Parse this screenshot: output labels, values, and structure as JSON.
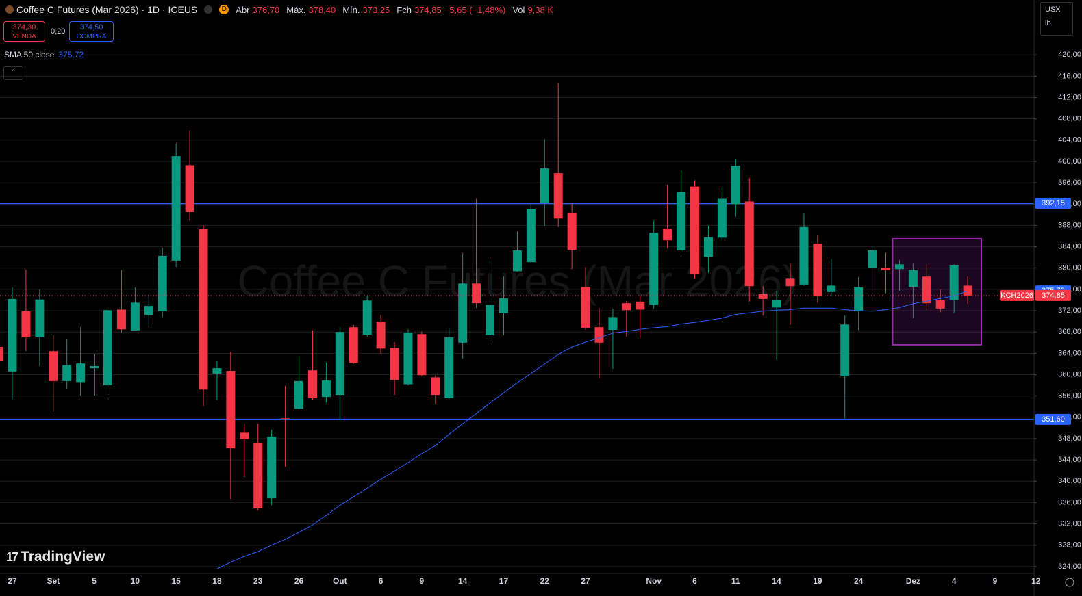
{
  "header": {
    "title": "Coffee C Futures (Mar 2026) · 1D · ICEUS",
    "interval_badge": "D",
    "open_label": "Abr",
    "open": "376,70",
    "high_label": "Máx.",
    "high": "378,40",
    "low_label": "Mín.",
    "low": "373,25",
    "close_label": "Fch",
    "close": "374,85",
    "change": "−5,65 (−1,48%)",
    "volume_label": "Vol",
    "volume": "9,38 K",
    "sell_price": "374,30",
    "sell_label": "VENDA",
    "spread": "0,20",
    "buy_price": "374,50",
    "buy_label": "COMPRA",
    "currency": "USX",
    "unit": "lb",
    "logo": "TradingView"
  },
  "chart_data": {
    "type": "candlestick",
    "watermark": "Coffee C Futures (Mar 2026)",
    "categories": [
      null,
      "27",
      null,
      null,
      "Set",
      null,
      null,
      "5",
      null,
      null,
      "10",
      null,
      null,
      "15",
      null,
      null,
      "18",
      null,
      null,
      "23",
      null,
      null,
      "26",
      null,
      null,
      "Out",
      null,
      null,
      "6",
      null,
      null,
      "9",
      null,
      null,
      "14",
      null,
      null,
      "17",
      null,
      null,
      "22",
      null,
      null,
      "27",
      null,
      null,
      null,
      null,
      "Nov",
      null,
      null,
      "6",
      null,
      null,
      "11",
      null,
      null,
      "14",
      null,
      null,
      "19",
      null,
      null,
      "24",
      null,
      null,
      null,
      "Dez",
      null,
      null,
      "4",
      null,
      null,
      "9",
      null,
      null,
      "12"
    ],
    "open": [
      365.2,
      360.6,
      371.9,
      367.0,
      364.4,
      358.8,
      358.6,
      361.2,
      358.0,
      372.2,
      368.3,
      371.2,
      371.9,
      381.4,
      399.3,
      387.3,
      360.2,
      360.7,
      349.1,
      347.2,
      336.8,
      351.8,
      353.6,
      360.8,
      355.8,
      356.2,
      368.9,
      367.5,
      369.9,
      365.0,
      358.2,
      367.6,
      359.5,
      355.6,
      366.0,
      377.1,
      367.4,
      371.5,
      379.4,
      381.1,
      392.3,
      397.8,
      390.3,
      376.5,
      368.9,
      368.4,
      373.4,
      373.7,
      373.1,
      387.4,
      383.3,
      395.3,
      382.1,
      385.7,
      392.0,
      392.5,
      375.1,
      372.6,
      378.0,
      376.9,
      384.6,
      375.5,
      359.7,
      371.9,
      380.0,
      380.0,
      379.8,
      376.5,
      378.4,
      374.0,
      374.0,
      376.7,
      null,
      null,
      null,
      null,
      null
    ],
    "high": [
      366.1,
      376.4,
      379.7,
      376.0,
      367.4,
      366.6,
      368.9,
      363.8,
      372.5,
      379.6,
      376.4,
      374.9,
      383.8,
      403.4,
      405.8,
      388.0,
      362.5,
      364.3,
      350.8,
      350.8,
      349.7,
      357.9,
      363.5,
      368.3,
      362.3,
      368.9,
      369.3,
      374.8,
      371.2,
      366.1,
      368.5,
      368.1,
      359.9,
      368.7,
      382.8,
      393.0,
      381.7,
      378.4,
      386.9,
      392.1,
      404.2,
      414.7,
      392.3,
      380.2,
      372.5,
      372.4,
      373.8,
      374.8,
      388.9,
      395.6,
      398.3,
      396.5,
      387.9,
      395.0,
      400.5,
      396.9,
      376.6,
      375.7,
      380.9,
      390.2,
      386.1,
      381.7,
      371.1,
      378.3,
      384.1,
      382.9,
      381.5,
      380.9,
      380.7,
      376.0,
      380.7,
      378.4,
      null,
      null,
      null,
      null,
      null
    ],
    "low": [
      361.0,
      355.4,
      364.4,
      361.6,
      353.1,
      357.4,
      356.1,
      356.1,
      356.2,
      367.9,
      368.3,
      368.9,
      370.8,
      380.2,
      388.9,
      354.0,
      355.2,
      336.7,
      340.8,
      334.5,
      335.5,
      342.7,
      353.5,
      355.3,
      354.7,
      351.4,
      362.0,
      367.1,
      363.9,
      356.2,
      358.0,
      359.7,
      354.5,
      355.4,
      363.0,
      372.5,
      365.7,
      367.4,
      379.3,
      381.0,
      387.9,
      387.7,
      379.8,
      368.4,
      359.3,
      361.1,
      367.1,
      366.9,
      372.4,
      383.7,
      382.9,
      378.0,
      379.1,
      385.3,
      389.6,
      373.7,
      371.1,
      362.8,
      369.3,
      376.7,
      373.5,
      374.7,
      351.8,
      368.4,
      373.8,
      375.3,
      375.7,
      370.6,
      372.1,
      371.7,
      371.5,
      373.25,
      null,
      null,
      null,
      null,
      null
    ],
    "close": [
      362.5,
      374.2,
      367.0,
      374.1,
      358.8,
      361.8,
      362.1,
      361.6,
      372.1,
      368.5,
      373.5,
      372.9,
      382.3,
      401.0,
      390.5,
      357.2,
      361.2,
      346.2,
      347.9,
      334.9,
      348.4,
      351.6,
      358.8,
      355.6,
      358.9,
      368.0,
      362.2,
      373.9,
      364.9,
      359.0,
      367.9,
      359.9,
      356.2,
      367.0,
      377.1,
      373.4,
      373.1,
      374.3,
      383.3,
      391.1,
      398.7,
      389.3,
      383.4,
      368.8,
      366.0,
      370.8,
      372.1,
      372.2,
      386.6,
      385.2,
      394.3,
      378.9,
      385.8,
      393.0,
      399.2,
      376.6,
      374.2,
      374.0,
      376.6,
      387.7,
      374.7,
      376.7,
      369.4,
      376.5,
      383.3,
      379.6,
      380.7,
      379.6,
      373.4,
      372.4,
      380.5,
      374.85,
      null,
      null,
      null,
      null,
      null
    ],
    "up_color": "#089981",
    "down_color": "#f23645",
    "sma": {
      "name": "SMA 50 close",
      "color": "#2962ff",
      "last_label": "375,72",
      "values": [
        null,
        null,
        null,
        null,
        null,
        null,
        null,
        null,
        null,
        null,
        null,
        null,
        null,
        null,
        null,
        null,
        323.6,
        324.8,
        325.9,
        326.8,
        328.0,
        329.1,
        330.4,
        331.8,
        333.6,
        335.5,
        337.1,
        338.7,
        340.4,
        341.9,
        343.5,
        345.2,
        346.7,
        348.8,
        350.8,
        352.7,
        354.7,
        356.6,
        358.5,
        360.2,
        362.0,
        363.8,
        365.2,
        366.1,
        366.9,
        367.8,
        368.1,
        368.5,
        368.8,
        369.0,
        369.5,
        369.8,
        370.2,
        370.6,
        371.3,
        371.6,
        371.9,
        372.1,
        372.2,
        372.5,
        372.5,
        372.5,
        372.2,
        372.0,
        371.9,
        372.2,
        372.6,
        373.3,
        373.8,
        374.3,
        374.8,
        375.72,
        null,
        null,
        null,
        null,
        null
      ]
    },
    "last_price": {
      "label": "374,85",
      "symbol": "KCH2026",
      "color": "#f23645"
    },
    "hlines": [
      {
        "value": 392.15,
        "label": "392,15",
        "color": "#2962ff"
      },
      {
        "value": 351.6,
        "label": "351,60",
        "color": "#2962ff"
      }
    ],
    "rectangle": {
      "ylim": [
        365.6,
        385.5
      ],
      "color": "#9c27b0"
    },
    "ylim": [
      322.7,
      430.3
    ],
    "yticks": [
      {
        "value": 324,
        "label": "324,00"
      },
      {
        "value": 328,
        "label": "328,00"
      },
      {
        "value": 332,
        "label": "332,00"
      },
      {
        "value": 336,
        "label": "336,00"
      },
      {
        "value": 340,
        "label": "340,00"
      },
      {
        "value": 344,
        "label": "344,00"
      },
      {
        "value": 348,
        "label": "348,00"
      },
      {
        "value": 352,
        "label": "352,00"
      },
      {
        "value": 356,
        "label": "356,00"
      },
      {
        "value": 360,
        "label": "360,00"
      },
      {
        "value": 364,
        "label": "364,00"
      },
      {
        "value": 368,
        "label": "368,00"
      },
      {
        "value": 372,
        "label": "372,00"
      },
      {
        "value": 376,
        "label": "376,00"
      },
      {
        "value": 380,
        "label": "380,00"
      },
      {
        "value": 384,
        "label": "384,00"
      },
      {
        "value": 388,
        "label": "388,00"
      },
      {
        "value": 392,
        "label": "392,00"
      },
      {
        "value": 396,
        "label": "396,00"
      },
      {
        "value": 400,
        "label": "400,00"
      },
      {
        "value": 404,
        "label": "404,00"
      },
      {
        "value": 408,
        "label": "408,00"
      },
      {
        "value": 412,
        "label": "412,00"
      },
      {
        "value": 416,
        "label": "416,00"
      },
      {
        "value": 420,
        "label": "420,00"
      }
    ],
    "grid": true
  }
}
